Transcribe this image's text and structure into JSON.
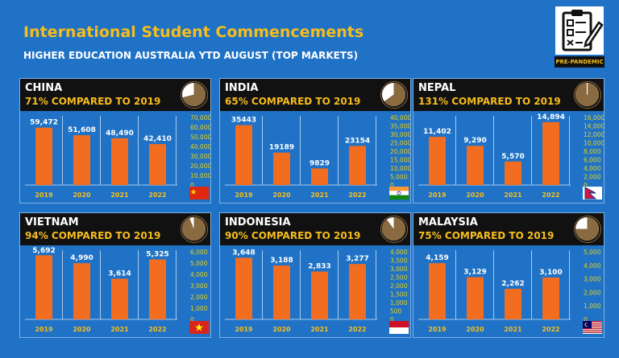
{
  "header": {
    "title": "International Student Commencements",
    "subtitle": "HIGHER EDUCATION AUSTRALIA YTD AUGUST (TOP MARKETS)",
    "badge_label": "PRE-PANDEMIC",
    "badge_icon": "checklist-icon"
  },
  "colors": {
    "background": "#1f72c6",
    "bar": "#f26d1f",
    "title": "#f6bd1c",
    "axis_label": "#e8d21c",
    "pie_fill": "#8a6a40",
    "panel_header": "#111111"
  },
  "chart_data": [
    {
      "type": "bar",
      "country": "CHINA",
      "comparison": "71% COMPARED TO 2019",
      "share_of_2019": 0.71,
      "categories": [
        "2019",
        "2020",
        "2021",
        "2022"
      ],
      "values": [
        59472,
        51608,
        48490,
        42410
      ],
      "value_labels": [
        "59,472",
        "51,608",
        "48,490",
        "42,410"
      ],
      "ylim": [
        0,
        70000
      ],
      "y_ticks": [
        0,
        10000,
        20000,
        30000,
        40000,
        50000,
        60000,
        70000
      ],
      "y_tick_labels": [
        "0",
        "10,000",
        "20,000",
        "30,000",
        "40,000",
        "50,000",
        "60,000",
        "70,000"
      ],
      "flag": "china-flag"
    },
    {
      "type": "bar",
      "country": "INDIA",
      "comparison": "65% COMPARED TO 2019",
      "share_of_2019": 0.65,
      "categories": [
        "2019",
        "2020",
        "2021",
        "2022"
      ],
      "values": [
        35443,
        19189,
        9829,
        23154
      ],
      "value_labels": [
        "35443",
        "19189",
        "9829",
        "23154"
      ],
      "ylim": [
        0,
        40000
      ],
      "y_ticks": [
        0,
        5000,
        10000,
        15000,
        20000,
        25000,
        30000,
        35000,
        40000
      ],
      "y_tick_labels": [
        "0",
        "5,000",
        "10,000",
        "15,000",
        "20,000",
        "25,000",
        "30,000",
        "35,000",
        "40,000"
      ],
      "flag": "india-flag"
    },
    {
      "type": "bar",
      "country": "NEPAL",
      "comparison": "131% COMPARED TO 2019",
      "share_of_2019": 1.31,
      "categories": [
        "2019",
        "2020",
        "2021",
        "2022"
      ],
      "values": [
        11402,
        9290,
        5570,
        14894
      ],
      "value_labels": [
        "11,402",
        "9,290",
        "5,570",
        "14,894"
      ],
      "ylim": [
        0,
        16000
      ],
      "y_ticks": [
        0,
        2000,
        4000,
        6000,
        8000,
        10000,
        12000,
        14000,
        16000
      ],
      "y_tick_labels": [
        "0",
        "2,000",
        "4,000",
        "6,000",
        "8,000",
        "10,000",
        "12,000",
        "14,000",
        "16,000"
      ],
      "flag": "nepal-flag"
    },
    {
      "type": "bar",
      "country": "VIETNAM",
      "comparison": "94% COMPARED TO 2019",
      "share_of_2019": 0.94,
      "categories": [
        "2019",
        "2020",
        "2021",
        "2022"
      ],
      "values": [
        5692,
        4990,
        3614,
        5325
      ],
      "value_labels": [
        "5,692",
        "4,990",
        "3,614",
        "5,325"
      ],
      "ylim": [
        0,
        6000
      ],
      "y_ticks": [
        0,
        1000,
        2000,
        3000,
        4000,
        5000,
        6000
      ],
      "y_tick_labels": [
        "0",
        "1,000",
        "2,000",
        "3,000",
        "4,000",
        "5,000",
        "6,000"
      ],
      "flag": "vietnam-flag"
    },
    {
      "type": "bar",
      "country": "INDONESIA",
      "comparison": "90% COMPARED TO 2019",
      "share_of_2019": 0.9,
      "categories": [
        "2019",
        "2020",
        "2021",
        "2022"
      ],
      "values": [
        3648,
        3188,
        2833,
        3277
      ],
      "value_labels": [
        "3,648",
        "3,188",
        "2,833",
        "3,277"
      ],
      "ylim": [
        0,
        4000
      ],
      "y_ticks": [
        0,
        500,
        1000,
        1500,
        2000,
        2500,
        3000,
        3500,
        4000
      ],
      "y_tick_labels": [
        "0",
        "500",
        "1,000",
        "1,500",
        "2,000",
        "2,500",
        "3,000",
        "3,500",
        "4,000"
      ],
      "flag": "indonesia-flag"
    },
    {
      "type": "bar",
      "country": "MALAYSIA",
      "comparison": "75% COMPARED TO 2019",
      "share_of_2019": 0.75,
      "categories": [
        "2019",
        "2020",
        "2021",
        "2022"
      ],
      "values": [
        4159,
        3129,
        2262,
        3100
      ],
      "value_labels": [
        "4,159",
        "3,129",
        "2,262",
        "3,100"
      ],
      "ylim": [
        0,
        5000
      ],
      "y_ticks": [
        0,
        1000,
        2000,
        3000,
        4000,
        5000
      ],
      "y_tick_labels": [
        "0",
        "1,000",
        "2,000",
        "3,000",
        "4,000",
        "5,000"
      ],
      "flag": "malaysia-flag"
    }
  ]
}
